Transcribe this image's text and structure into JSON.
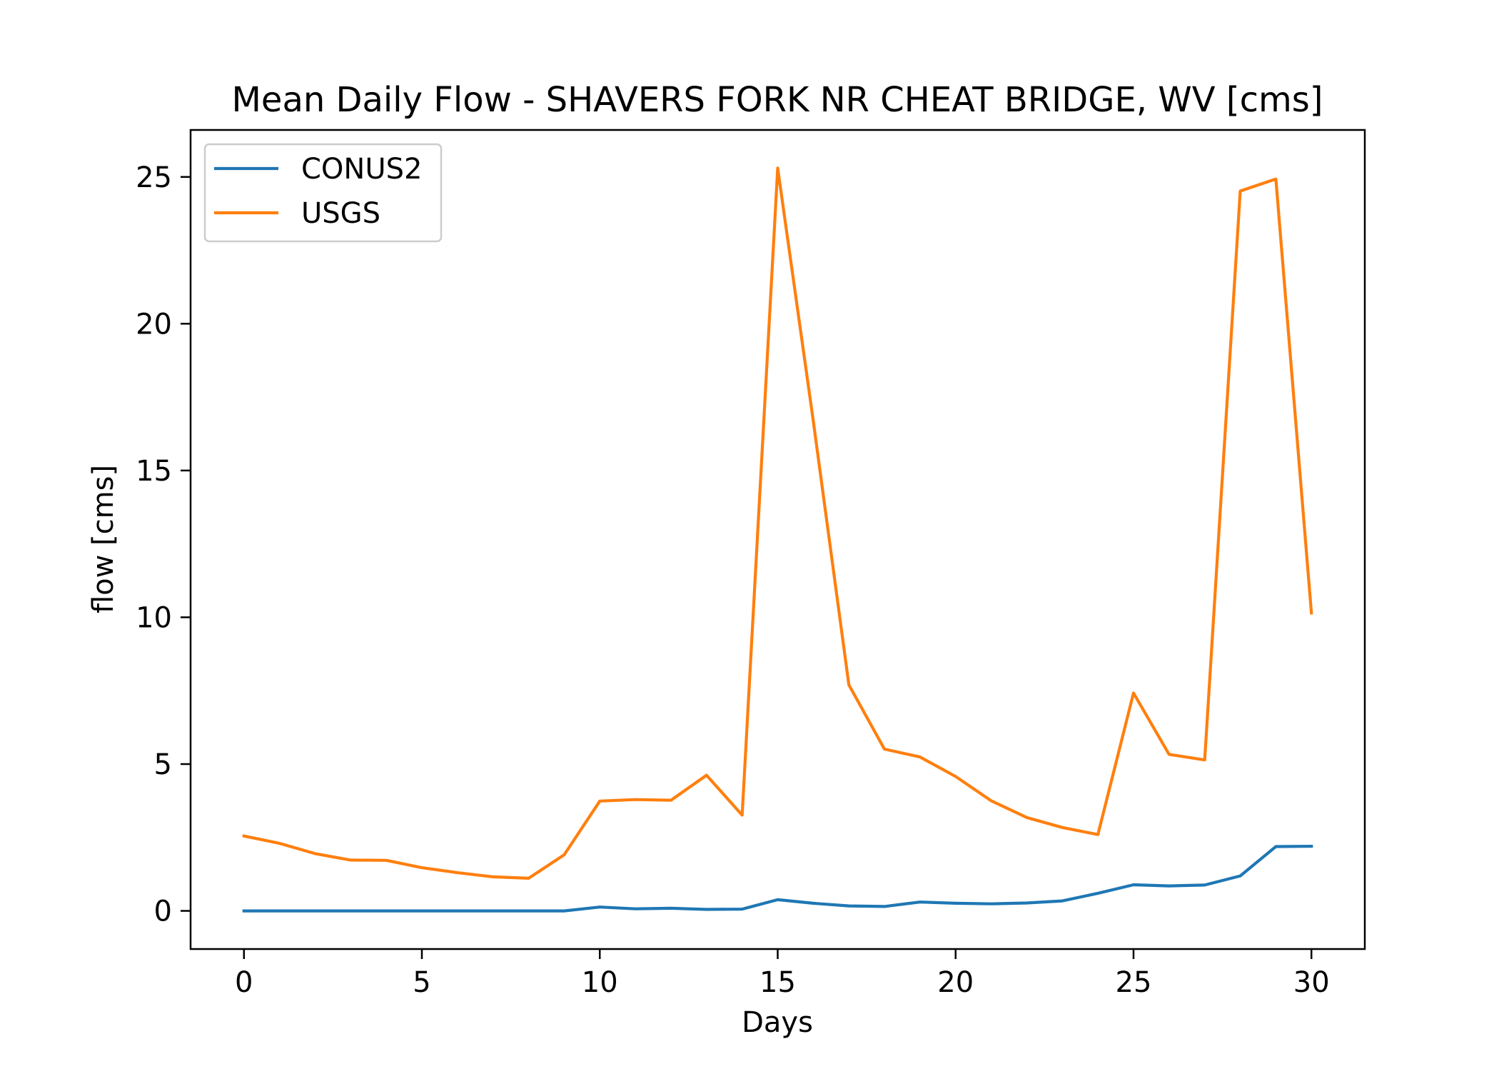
{
  "chart_data": {
    "type": "line",
    "title": "Mean Daily Flow - SHAVERS FORK NR CHEAT BRIDGE, WV [cms]",
    "xlabel": "Days",
    "ylabel": "flow [cms]",
    "xlim": [
      -1.5,
      31.5
    ],
    "ylim": [
      -1.3,
      26.6
    ],
    "xticks": [
      0,
      5,
      10,
      15,
      20,
      25,
      30
    ],
    "yticks": [
      0,
      5,
      10,
      15,
      20,
      25
    ],
    "grid": false,
    "legend_position": "top-left",
    "x": [
      0,
      1,
      2,
      3,
      4,
      5,
      6,
      7,
      8,
      9,
      10,
      11,
      12,
      13,
      14,
      15,
      16,
      17,
      18,
      19,
      20,
      21,
      22,
      23,
      24,
      25,
      26,
      27,
      28,
      29,
      30
    ],
    "series": [
      {
        "name": "CONUS2",
        "color": "#1f77b4",
        "values": [
          0.0,
          0.0,
          0.0,
          0.0,
          0.0,
          0.0,
          0.0,
          0.0,
          0.0,
          0.0,
          0.13,
          0.07,
          0.09,
          0.05,
          0.06,
          0.38,
          0.26,
          0.17,
          0.15,
          0.3,
          0.26,
          0.24,
          0.27,
          0.34,
          0.6,
          0.89,
          0.85,
          0.88,
          1.19,
          2.19,
          2.2
        ]
      },
      {
        "name": "USGS",
        "color": "#ff7f0e",
        "values": [
          2.55,
          2.3,
          1.95,
          1.73,
          1.72,
          1.47,
          1.3,
          1.16,
          1.11,
          1.91,
          3.74,
          3.79,
          3.77,
          4.62,
          3.26,
          25.3,
          16.7,
          7.7,
          5.51,
          5.24,
          4.58,
          3.75,
          3.18,
          2.84,
          2.6,
          7.42,
          5.33,
          5.14,
          24.52,
          24.93,
          10.15
        ]
      }
    ]
  }
}
